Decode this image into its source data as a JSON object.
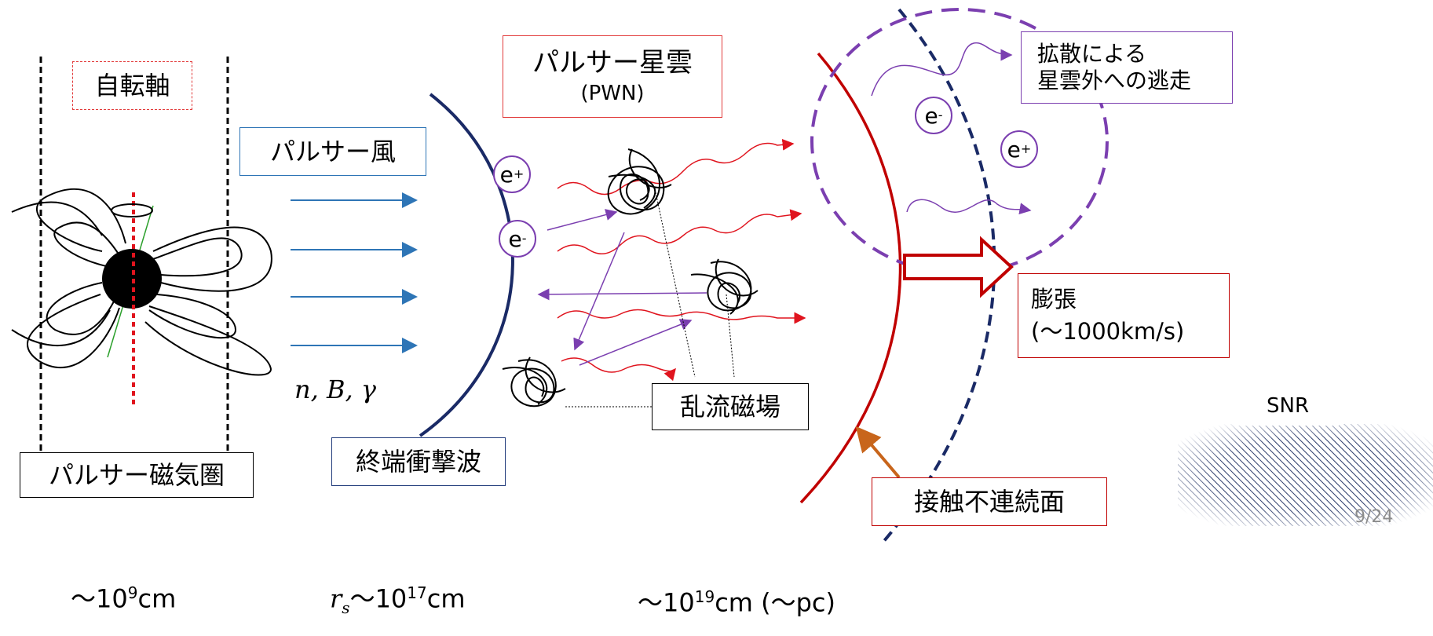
{
  "labels": {
    "rotation_axis": "自転軸",
    "pulsar_wind": "パルサー風",
    "pwn_title": "パルサー星雲",
    "pwn_sub": "(PWN)",
    "escape_line1": "拡散による",
    "escape_line2": "星雲外への逃走",
    "expansion_line1": "膨張",
    "expansion_line2": "(〜1000km/s)",
    "snr": "SNR",
    "magnetosphere": "パルサー磁気圏",
    "termination_shock": "終端衝撃波",
    "turbulent_field": "乱流磁場",
    "contact_discontinuity": "接触不連続面"
  },
  "particles": {
    "positron": "e",
    "electron": "e",
    "plus": "+",
    "minus": "-"
  },
  "params": {
    "math": "n, B, γ"
  },
  "scales": {
    "s1_prefix": "〜10",
    "s1_exp": "9",
    "s1_unit": "cm",
    "s2_var": "r",
    "s2_sub": "s",
    "s2_mid": "〜10",
    "s2_exp": "17",
    "s2_unit": "cm",
    "s3_prefix": "〜10",
    "s3_exp": "19",
    "s3_unit": "cm (〜pc)"
  },
  "page": "9/24",
  "colors": {
    "box_red": "#e23b3b",
    "box_blue": "#2e75b6",
    "box_navy": "#1f3a7a",
    "arrow_blue": "#2e75b6",
    "purple": "#7b3fb0",
    "red": "#e0141e",
    "dark_red": "#c00000",
    "navy": "#1a2a66",
    "orange": "#c8651b",
    "green": "#2ca02c"
  }
}
